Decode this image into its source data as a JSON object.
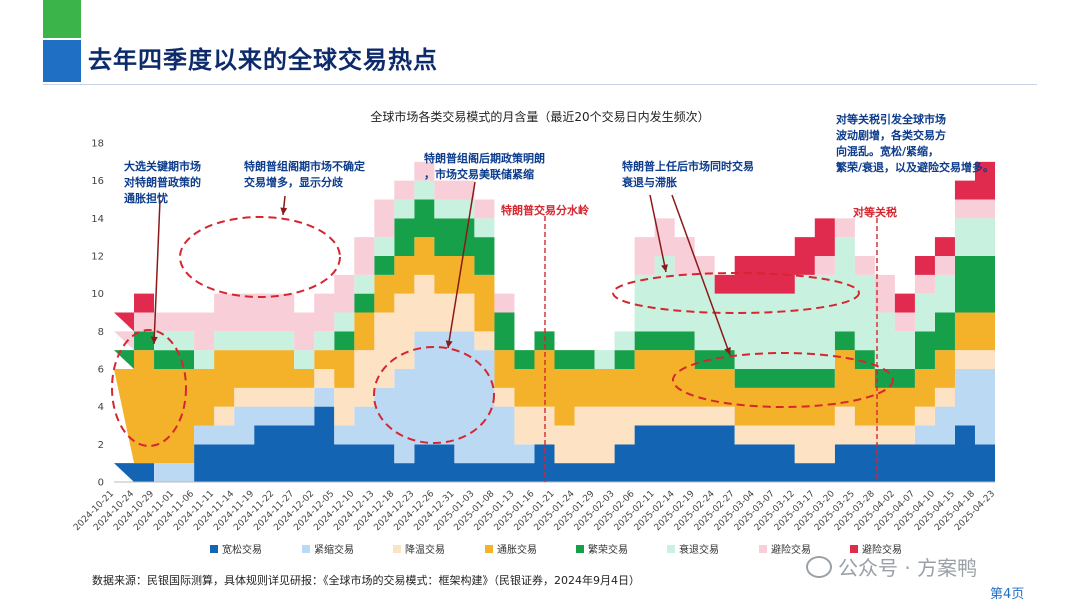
{
  "header": {
    "title": "去年四季度以来的全球交易热点"
  },
  "footer": {
    "source": "数据来源：民银国际测算，具体规则详见研报：《全球市场的交易模式：框架构建》（民银证券，2024年9月4日）",
    "watermark": "公众号 · 方案鸭",
    "page": "第4页"
  },
  "chart_data": {
    "type": "area",
    "stacked": true,
    "title": "全球市场各类交易模式的月含量（最近20个交易日内发生频次）",
    "ylim": [
      0,
      18
    ],
    "yticks": [
      0,
      2,
      4,
      6,
      8,
      10,
      12,
      14,
      16,
      18
    ],
    "xtick_labels": [
      "2024-10-21",
      "2024-10-24",
      "2024-10-29",
      "2024-11-01",
      "2024-11-06",
      "2024-11-11",
      "2024-11-14",
      "2024-11-19",
      "2024-11-22",
      "2024-11-27",
      "2024-12-02",
      "2024-12-05",
      "2024-12-10",
      "2024-12-13",
      "2024-12-18",
      "2024-12-23",
      "2024-12-26",
      "2024-12-31",
      "2025-01-03",
      "2025-01-08",
      "2025-01-13",
      "2025-01-16",
      "2025-01-21",
      "2025-01-24",
      "2025-01-29",
      "2025-02-03",
      "2025-02-06",
      "2025-02-11",
      "2025-02-14",
      "2025-02-19",
      "2025-02-24",
      "2025-02-27",
      "2025-03-04",
      "2025-03-07",
      "2025-03-12",
      "2025-03-17",
      "2025-03-20",
      "2025-03-25",
      "2025-03-28",
      "2025-04-02",
      "2025-04-07",
      "2025-04-10",
      "2025-04-15",
      "2025-04-18",
      "2025-04-23"
    ],
    "legend_position": "bottom",
    "series": [
      {
        "name": "宽松交易",
        "color": "#1464b4",
        "values": [
          1,
          1,
          0,
          0,
          2,
          2,
          2,
          3,
          3,
          3,
          4,
          2,
          2,
          2,
          1,
          2,
          2,
          1,
          1,
          1,
          1,
          2,
          1,
          1,
          1,
          2,
          3,
          3,
          3,
          3,
          3,
          2,
          2,
          2,
          1,
          1,
          2,
          2,
          2,
          2,
          2,
          2,
          3,
          2,
          4
        ]
      },
      {
        "name": "紧缩交易",
        "color": "#bcd9f4",
        "values": [
          0,
          0,
          1,
          1,
          1,
          1,
          2,
          1,
          1,
          1,
          1,
          1,
          2,
          3,
          5,
          6,
          6,
          7,
          6,
          3,
          1,
          0,
          0,
          0,
          0,
          0,
          0,
          0,
          0,
          0,
          0,
          0,
          0,
          0,
          0,
          0,
          0,
          0,
          0,
          0,
          1,
          2,
          3,
          4,
          3
        ]
      },
      {
        "name": "降温交易",
        "color": "#fde2c4",
        "values": [
          0,
          0,
          0,
          0,
          0,
          1,
          1,
          1,
          1,
          1,
          1,
          2,
          3,
          4,
          4,
          3,
          2,
          2,
          1,
          1,
          2,
          2,
          2,
          3,
          3,
          2,
          1,
          1,
          1,
          1,
          1,
          1,
          1,
          1,
          2,
          2,
          2,
          1,
          1,
          1,
          1,
          1,
          1,
          1,
          1
        ]
      },
      {
        "name": "通胀交易",
        "color": "#f4b12a",
        "values": [
          5,
          6,
          5,
          5,
          3,
          3,
          2,
          2,
          2,
          1,
          1,
          2,
          2,
          2,
          2,
          2,
          2,
          2,
          3,
          2,
          2,
          3,
          3,
          2,
          2,
          2,
          3,
          3,
          3,
          2,
          2,
          2,
          2,
          2,
          2,
          2,
          3,
          3,
          2,
          2,
          2,
          2,
          2,
          2,
          1
        ]
      },
      {
        "name": "繁荣交易",
        "color": "#17a04a",
        "values": [
          1,
          1,
          1,
          1,
          0,
          0,
          0,
          0,
          0,
          0,
          0,
          1,
          1,
          1,
          2,
          2,
          2,
          2,
          2,
          2,
          1,
          1,
          1,
          1,
          0,
          1,
          1,
          1,
          1,
          1,
          1,
          1,
          1,
          1,
          1,
          1,
          1,
          1,
          1,
          1,
          2,
          2,
          3,
          3,
          3
        ]
      },
      {
        "name": "衰退交易",
        "color": "#c9f1e0",
        "values": [
          0,
          0,
          1,
          1,
          1,
          1,
          1,
          1,
          1,
          1,
          1,
          1,
          1,
          1,
          1,
          1,
          1,
          1,
          1,
          0,
          0,
          0,
          0,
          0,
          1,
          1,
          3,
          4,
          3,
          4,
          3,
          4,
          4,
          4,
          5,
          5,
          5,
          4,
          3,
          2,
          2,
          2,
          2,
          2,
          2
        ]
      },
      {
        "name": "避险交易",
        "color": "#f8cfd8",
        "values": [
          1,
          1,
          1,
          1,
          2,
          2,
          2,
          2,
          2,
          2,
          2,
          2,
          2,
          2,
          1,
          1,
          1,
          1,
          1,
          1,
          0,
          0,
          0,
          0,
          0,
          0,
          2,
          2,
          2,
          1,
          0,
          0,
          0,
          0,
          0,
          1,
          1,
          1,
          2,
          1,
          1,
          1,
          1,
          1,
          1
        ]
      },
      {
        "name": "避险交易",
        "color": "#e02a4e",
        "values": [
          1,
          1,
          0,
          0,
          0,
          0,
          0,
          0,
          0,
          0,
          0,
          0,
          0,
          0,
          0,
          0,
          0,
          0,
          0,
          0,
          0,
          0,
          0,
          0,
          0,
          0,
          0,
          0,
          0,
          0,
          1,
          2,
          2,
          2,
          2,
          2,
          0,
          0,
          0,
          1,
          1,
          1,
          1,
          2,
          2
        ]
      }
    ],
    "annotations": [
      {
        "text": "大选关键期市场对特朗普政策的通胀担忧",
        "color": "#0d3c8c"
      },
      {
        "text": "特朗普组阁期市场不确定交易增多，显示分歧",
        "color": "#0d3c8c"
      },
      {
        "text": "特朗普组阁后期政策明朗，市场交易美联储紧缩",
        "color": "#0d3c8c"
      },
      {
        "text": "特朗普上任后市场同时交易衰退与滞胀",
        "color": "#0d3c8c"
      },
      {
        "text": "对等关税引发全球市场波动剧增，各类交易方向混乱。宽松/紧缩，繁荣/衰退，以及避险交易增多。",
        "color": "#0d3c8c"
      },
      {
        "text": "特朗普交易分水岭",
        "color": "#d6262f"
      },
      {
        "text": "对等关税",
        "color": "#d6262f"
      }
    ]
  }
}
